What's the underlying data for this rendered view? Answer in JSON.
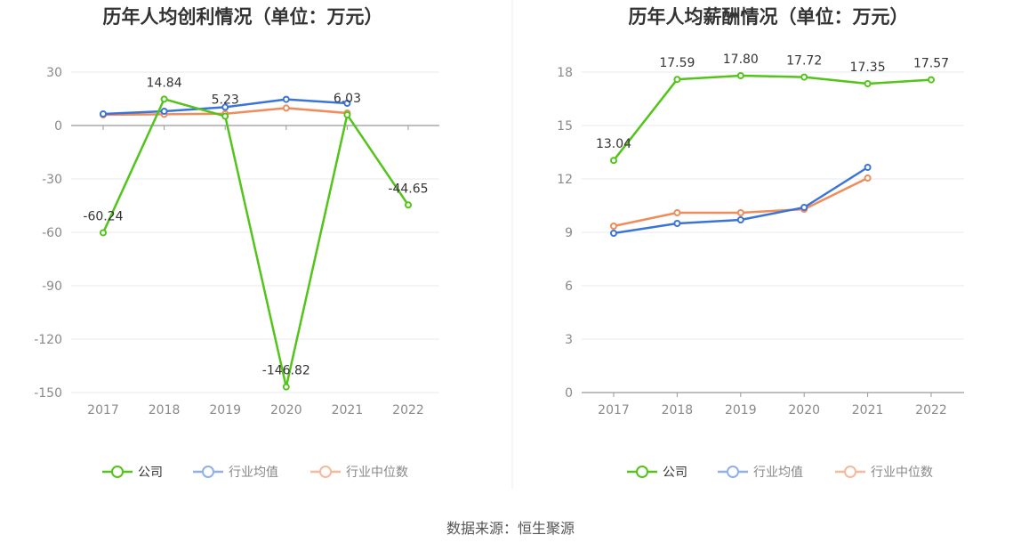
{
  "colors": {
    "company": "#52c41a",
    "industry_avg": "#3b74d9",
    "industry_median": "#f08b5a",
    "legend_avg": "#8fb0ea",
    "legend_median": "#f7b89b"
  },
  "source": "数据来源：恒生聚源",
  "chart_data": [
    {
      "type": "line",
      "title": "历年人均创利情况（单位：万元）",
      "categories": [
        "2017",
        "2018",
        "2019",
        "2020",
        "2021",
        "2022"
      ],
      "ylim": [
        -150,
        30
      ],
      "yticks": [
        "30",
        "0",
        "-30",
        "-60",
        "-90",
        "-120",
        "-150"
      ],
      "legend": [
        "公司",
        "行业均值",
        "行业中位数"
      ],
      "series": [
        {
          "name": "公司",
          "values": [
            -60.24,
            14.84,
            5.23,
            -146.82,
            6.03,
            -44.65
          ],
          "labels": [
            "-60.24",
            "14.84",
            "5.23",
            "-146.82",
            "6.03",
            "-44.65"
          ]
        },
        {
          "name": "行业均值",
          "values": [
            6.5,
            8.0,
            10.3,
            14.7,
            12.5,
            null
          ]
        },
        {
          "name": "行业中位数",
          "values": [
            6.0,
            6.3,
            6.6,
            9.8,
            7.0,
            null
          ]
        }
      ]
    },
    {
      "type": "line",
      "title": "历年人均薪酬情况（单位：万元）",
      "categories": [
        "2017",
        "2018",
        "2019",
        "2020",
        "2021",
        "2022"
      ],
      "ylim": [
        0,
        18
      ],
      "yticks": [
        "18",
        "15",
        "12",
        "9",
        "6",
        "3",
        "0"
      ],
      "legend": [
        "公司",
        "行业均值",
        "行业中位数"
      ],
      "series": [
        {
          "name": "公司",
          "values": [
            13.04,
            17.59,
            17.8,
            17.72,
            17.35,
            17.57
          ],
          "labels": [
            "13.04",
            "17.59",
            "17.80",
            "17.72",
            "17.35",
            "17.57"
          ]
        },
        {
          "name": "行业均值",
          "values": [
            8.95,
            9.5,
            9.7,
            10.4,
            12.65,
            null
          ]
        },
        {
          "name": "行业中位数",
          "values": [
            9.35,
            10.1,
            10.1,
            10.3,
            12.05,
            null
          ]
        }
      ]
    }
  ]
}
